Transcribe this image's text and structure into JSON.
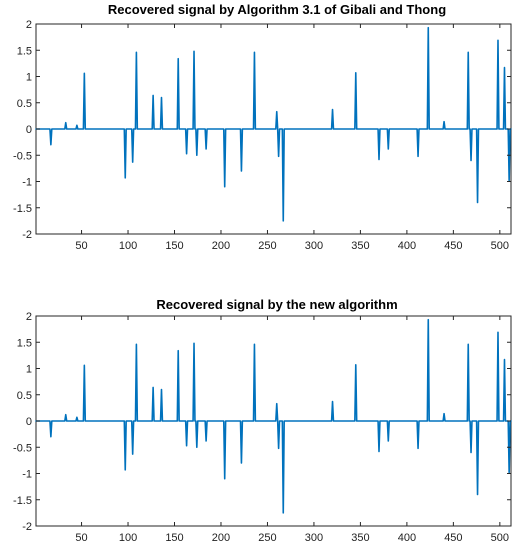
{
  "chart_data": [
    {
      "type": "line",
      "title": "Recovered signal by Algorithm 3.1 of Gibali and Thong",
      "xlabel": "",
      "ylabel": "",
      "xlim": [
        1,
        512
      ],
      "ylim": [
        -2,
        2
      ],
      "xticks": [
        50,
        100,
        150,
        200,
        250,
        300,
        350,
        400,
        450,
        500
      ],
      "yticks": [
        -2,
        -1.5,
        -1,
        -0.5,
        0,
        0.5,
        1,
        1.5,
        2
      ],
      "grid": false,
      "series": [
        {
          "color": "#0072BD",
          "spikes": [
            {
              "x": 17,
              "y": -0.3
            },
            {
              "x": 33,
              "y": 0.12
            },
            {
              "x": 45,
              "y": 0.07
            },
            {
              "x": 53,
              "y": 1.06
            },
            {
              "x": 97,
              "y": -0.93
            },
            {
              "x": 105,
              "y": -0.63
            },
            {
              "x": 109,
              "y": 1.46
            },
            {
              "x": 127,
              "y": 0.64
            },
            {
              "x": 136,
              "y": 0.6
            },
            {
              "x": 154,
              "y": 1.34
            },
            {
              "x": 163,
              "y": -0.47
            },
            {
              "x": 171,
              "y": 1.48
            },
            {
              "x": 174,
              "y": -0.5
            },
            {
              "x": 184,
              "y": -0.38
            },
            {
              "x": 204,
              "y": -1.1
            },
            {
              "x": 222,
              "y": -0.8
            },
            {
              "x": 236,
              "y": 1.46
            },
            {
              "x": 260,
              "y": 0.33
            },
            {
              "x": 262,
              "y": -0.52
            },
            {
              "x": 267,
              "y": -1.75
            },
            {
              "x": 320,
              "y": 0.37
            },
            {
              "x": 345,
              "y": 1.07
            },
            {
              "x": 370,
              "y": -0.58
            },
            {
              "x": 380,
              "y": -0.38
            },
            {
              "x": 412,
              "y": -0.52
            },
            {
              "x": 423,
              "y": 1.93
            },
            {
              "x": 440,
              "y": 0.14
            },
            {
              "x": 466,
              "y": 1.46
            },
            {
              "x": 469,
              "y": -0.6
            },
            {
              "x": 476,
              "y": -1.4
            },
            {
              "x": 498,
              "y": 1.69
            },
            {
              "x": 505,
              "y": 1.17
            },
            {
              "x": 510,
              "y": -0.98
            }
          ]
        }
      ]
    },
    {
      "type": "line",
      "title": "Recovered signal by the new algorithm",
      "xlabel": "",
      "ylabel": "",
      "xlim": [
        1,
        512
      ],
      "ylim": [
        -2,
        2
      ],
      "xticks": [
        50,
        100,
        150,
        200,
        250,
        300,
        350,
        400,
        450,
        500
      ],
      "yticks": [
        -2,
        -1.5,
        -1,
        -0.5,
        0,
        0.5,
        1,
        1.5,
        2
      ],
      "grid": false,
      "series": [
        {
          "color": "#0072BD",
          "spikes": [
            {
              "x": 17,
              "y": -0.3
            },
            {
              "x": 33,
              "y": 0.12
            },
            {
              "x": 45,
              "y": 0.07
            },
            {
              "x": 53,
              "y": 1.06
            },
            {
              "x": 97,
              "y": -0.93
            },
            {
              "x": 105,
              "y": -0.63
            },
            {
              "x": 109,
              "y": 1.46
            },
            {
              "x": 127,
              "y": 0.64
            },
            {
              "x": 136,
              "y": 0.6
            },
            {
              "x": 154,
              "y": 1.34
            },
            {
              "x": 163,
              "y": -0.47
            },
            {
              "x": 171,
              "y": 1.48
            },
            {
              "x": 174,
              "y": -0.5
            },
            {
              "x": 184,
              "y": -0.38
            },
            {
              "x": 204,
              "y": -1.1
            },
            {
              "x": 222,
              "y": -0.8
            },
            {
              "x": 236,
              "y": 1.46
            },
            {
              "x": 260,
              "y": 0.33
            },
            {
              "x": 262,
              "y": -0.52
            },
            {
              "x": 267,
              "y": -1.75
            },
            {
              "x": 320,
              "y": 0.37
            },
            {
              "x": 345,
              "y": 1.07
            },
            {
              "x": 370,
              "y": -0.58
            },
            {
              "x": 380,
              "y": -0.38
            },
            {
              "x": 412,
              "y": -0.52
            },
            {
              "x": 423,
              "y": 1.93
            },
            {
              "x": 440,
              "y": 0.14
            },
            {
              "x": 466,
              "y": 1.46
            },
            {
              "x": 469,
              "y": -0.6
            },
            {
              "x": 476,
              "y": -1.4
            },
            {
              "x": 498,
              "y": 1.69
            },
            {
              "x": 505,
              "y": 1.17
            },
            {
              "x": 510,
              "y": -0.98
            }
          ]
        }
      ]
    }
  ]
}
